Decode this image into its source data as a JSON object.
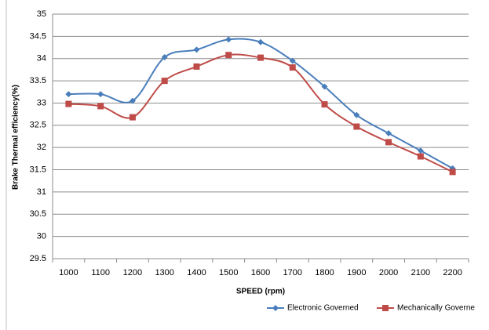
{
  "chart_data": {
    "type": "line",
    "x_label": "SPEED (rpm)",
    "y_label": "Brake Thermal efficiency(%)",
    "categories": [
      "1000",
      "1100",
      "1200",
      "1300",
      "1400",
      "1500",
      "1600",
      "1700",
      "1800",
      "1900",
      "2000",
      "2100",
      "2200"
    ],
    "series": [
      {
        "name": "Electronic Governed",
        "color": "#4a7ebb",
        "marker": "diamond",
        "values": [
          33.2,
          33.2,
          33.05,
          34.03,
          34.2,
          34.43,
          34.37,
          33.95,
          33.37,
          32.73,
          32.32,
          31.93,
          31.53
        ]
      },
      {
        "name": "Mechanically Governe",
        "color": "#be4b48",
        "marker": "square",
        "values": [
          32.98,
          32.93,
          32.68,
          33.5,
          33.82,
          34.08,
          34.02,
          33.8,
          32.97,
          32.47,
          32.12,
          31.8,
          31.45
        ]
      }
    ],
    "ylim": [
      29.5,
      35
    ],
    "yticks": [
      29.5,
      30,
      30.5,
      31,
      31.5,
      32,
      32.5,
      33,
      33.5,
      34,
      34.5,
      35
    ],
    "grid": true,
    "smooth": true,
    "legend": "bottom"
  }
}
